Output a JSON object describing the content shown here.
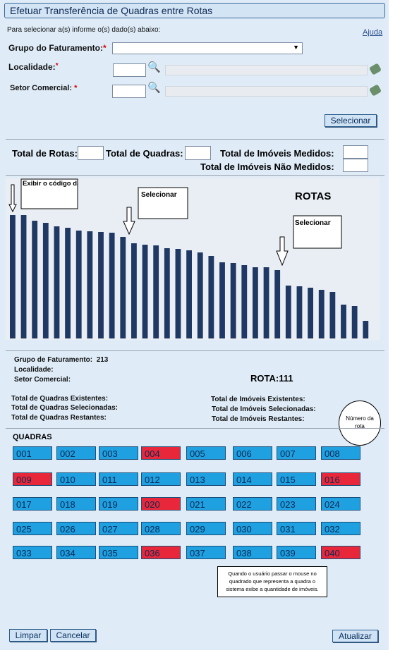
{
  "window_title": "Efetuar Transferência de Quadras entre Rotas",
  "instructions": "Para selecionar a(s) informe o(s) dado(s) abaixo:",
  "help": "Ajuda",
  "required_mark": "*",
  "fields": {
    "grupo": "Grupo do Faturamento:",
    "localidade": "Localidade:",
    "setor": "Setor Comercial:"
  },
  "buttons": {
    "selecionar": "Selecionar",
    "limpar": "Limpar",
    "cancelar": "Cancelar",
    "atualizar": "Atualizar"
  },
  "totals": {
    "rotas": "Total de Rotas:",
    "quadras": "Total de Quadras:",
    "medidos": "Total de Imóveis Medidos:",
    "nao_medidos": "Total de Imóveis Não Medidos:"
  },
  "chart_data": {
    "type": "bar",
    "title": "ROTAS",
    "color": "#1f3864",
    "ylim": [
      0,
      228
    ],
    "values": [
      175,
      175,
      167,
      164,
      159,
      157,
      153,
      152,
      151,
      150,
      144,
      135,
      133,
      132,
      128,
      127,
      125,
      122,
      117,
      108,
      107,
      104,
      101,
      101,
      97,
      75,
      74,
      72,
      69,
      66,
      48,
      46,
      25
    ],
    "annotations": [
      "Exibir o código da rota quando passa o \"mouse\"",
      "Selecionar Rota",
      "Selecionar Rota"
    ]
  },
  "info": {
    "grupo_label": "Grupo de Faturamento:",
    "grupo_value": "213",
    "localidade": "Localidade:",
    "setor": "Setor Comercial:",
    "rota": "ROTA:111",
    "left": [
      "Total de Quadras Existentes:",
      "Total de Quadras Selecionadas:",
      "Total de Quadras Restantes:"
    ],
    "right": [
      "Total de Imóveis Existentes:",
      "Total de Imóveis Selecionadas:",
      "Total de Imóveis Restantes:"
    ],
    "callout": "Número da rota"
  },
  "quadras_label": "QUADRAS",
  "quadras": [
    {
      "code": "001",
      "color": "#1fa0e0"
    },
    {
      "code": "002",
      "color": "#1fa0e0"
    },
    {
      "code": "003",
      "color": "#1fa0e0"
    },
    {
      "code": "004",
      "color": "#e8283a"
    },
    {
      "code": "005",
      "color": "#1fa0e0"
    },
    {
      "code": "006",
      "color": "#1fa0e0"
    },
    {
      "code": "007",
      "color": "#1fa0e0"
    },
    {
      "code": "008",
      "color": "#1fa0e0"
    },
    {
      "code": "009",
      "color": "#e8283a"
    },
    {
      "code": "010",
      "color": "#1fa0e0"
    },
    {
      "code": "011",
      "color": "#1fa0e0"
    },
    {
      "code": "012",
      "color": "#1fa0e0"
    },
    {
      "code": "013",
      "color": "#1fa0e0"
    },
    {
      "code": "014",
      "color": "#1fa0e0"
    },
    {
      "code": "015",
      "color": "#1fa0e0"
    },
    {
      "code": "016",
      "color": "#e8283a"
    },
    {
      "code": "017",
      "color": "#1fa0e0"
    },
    {
      "code": "018",
      "color": "#1fa0e0"
    },
    {
      "code": "019",
      "color": "#1fa0e0"
    },
    {
      "code": "020",
      "color": "#e8283a"
    },
    {
      "code": "021",
      "color": "#1fa0e0"
    },
    {
      "code": "022",
      "color": "#1fa0e0"
    },
    {
      "code": "023",
      "color": "#1fa0e0"
    },
    {
      "code": "024",
      "color": "#1fa0e0"
    },
    {
      "code": "025",
      "color": "#1fa0e0"
    },
    {
      "code": "026",
      "color": "#1fa0e0"
    },
    {
      "code": "027",
      "color": "#1fa0e0"
    },
    {
      "code": "028",
      "color": "#1fa0e0"
    },
    {
      "code": "029",
      "color": "#1fa0e0"
    },
    {
      "code": "030",
      "color": "#1fa0e0"
    },
    {
      "code": "031",
      "color": "#1fa0e0"
    },
    {
      "code": "032",
      "color": "#1fa0e0"
    },
    {
      "code": "033",
      "color": "#1fa0e0"
    },
    {
      "code": "034",
      "color": "#1fa0e0"
    },
    {
      "code": "035",
      "color": "#1fa0e0"
    },
    {
      "code": "036",
      "color": "#e8283a"
    },
    {
      "code": "037",
      "color": "#1fa0e0"
    },
    {
      "code": "038",
      "color": "#1fa0e0"
    },
    {
      "code": "039",
      "color": "#1fa0e0"
    },
    {
      "code": "040",
      "color": "#e8283a"
    }
  ],
  "note": "Quando o usuário passar o mouse no quadrado que representa a quadra o sistema exibe a quantidade de imóveis."
}
